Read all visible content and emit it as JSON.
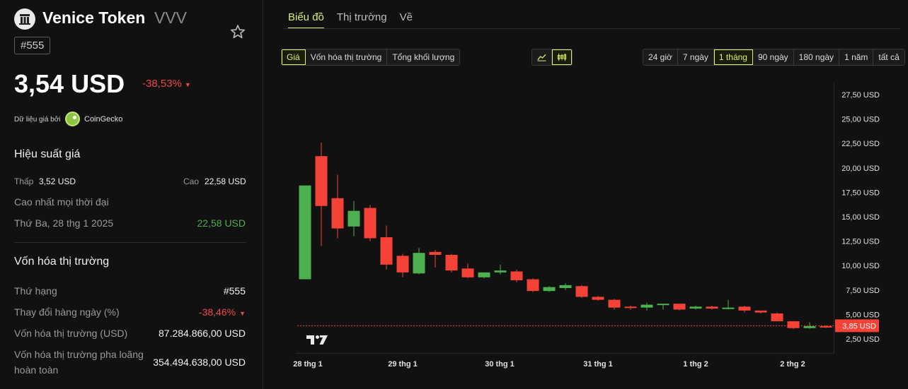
{
  "coin": {
    "name": "Venice Token",
    "symbol": "VVV",
    "rank_badge": "#555",
    "price": "3,54 USD",
    "price_change": "-38,53%",
    "price_change_arrow": "▼",
    "source_label": "Dữ liệu giá bởi",
    "source_name": "CoinGecko"
  },
  "performance": {
    "title": "Hiệu suất giá",
    "low_label": "Thấp",
    "low_value": "3,52 USD",
    "high_label": "Cao",
    "high_value": "22,58 USD",
    "ath_label": "Cao nhất mọi thời đại",
    "ath_date": "Thứ Ba, 28 thg 1 2025",
    "ath_value": "22,58 USD"
  },
  "market_cap": {
    "title": "Vốn hóa thị trường",
    "rank_label": "Thứ hạng",
    "rank_value": "#555",
    "daily_change_label": "Thay đổi hàng ngày (%)",
    "daily_change_value": "-38,46%",
    "daily_change_arrow": "▼",
    "mcap_label": "Vốn hóa thị trường (USD)",
    "mcap_value": "87.284.866,00 USD",
    "fdv_label_1": "Vốn hóa thị trường pha loãng",
    "fdv_label_2": "hoàn toàn",
    "fdv_value": "354.494.638,00 USD"
  },
  "tabs": [
    "Biểu đồ",
    "Thị trường",
    "Về"
  ],
  "metric_buttons": [
    "Giá",
    "Vốn hóa thị trường",
    "Tổng khối lượng"
  ],
  "chart_type_icons": [
    "line-chart-icon",
    "candlestick-chart-icon"
  ],
  "range_buttons": [
    "24 giờ",
    "7 ngày",
    "1 tháng",
    "90 ngày",
    "180 ngày",
    "1 năm",
    "tất cả"
  ],
  "colors": {
    "accent": "#d9f06a",
    "up": "#4caf50",
    "down": "#f44336",
    "background": "#111111"
  },
  "chart_data": {
    "type": "candlestick",
    "y_ticks": [
      "27,50 USD",
      "25,00 USD",
      "22,50 USD",
      "20,00 USD",
      "17,50 USD",
      "15,00 USD",
      "12,50 USD",
      "10,00 USD",
      "7,50 USD",
      "5,00 USD",
      "2,50 USD"
    ],
    "y_tick_values": [
      27.5,
      25,
      22.5,
      20,
      17.5,
      15,
      12.5,
      10,
      7.5,
      5,
      2.5
    ],
    "x_ticks": [
      "28 thg 1",
      "29 thg 1",
      "30 thg 1",
      "31 thg 1",
      "1 thg 2",
      "2 thg 2"
    ],
    "current_price_label": "3,85 USD",
    "current_price": 3.85,
    "candles": [
      {
        "o": 8.6,
        "h": 18.2,
        "l": 8.6,
        "c": 18.2
      },
      {
        "o": 21.2,
        "h": 22.6,
        "l": 12.0,
        "c": 16.1
      },
      {
        "o": 16.9,
        "h": 19.3,
        "l": 12.8,
        "c": 13.8
      },
      {
        "o": 14.0,
        "h": 16.6,
        "l": 13.0,
        "c": 15.6
      },
      {
        "o": 15.9,
        "h": 16.2,
        "l": 12.5,
        "c": 12.8
      },
      {
        "o": 12.9,
        "h": 14.1,
        "l": 9.6,
        "c": 10.1
      },
      {
        "o": 11.0,
        "h": 11.2,
        "l": 8.8,
        "c": 9.3
      },
      {
        "o": 9.2,
        "h": 11.8,
        "l": 9.1,
        "c": 11.3
      },
      {
        "o": 11.4,
        "h": 11.6,
        "l": 9.8,
        "c": 11.1
      },
      {
        "o": 11.1,
        "h": 11.2,
        "l": 9.3,
        "c": 9.5
      },
      {
        "o": 9.7,
        "h": 10.2,
        "l": 8.7,
        "c": 8.8
      },
      {
        "o": 8.8,
        "h": 9.3,
        "l": 8.7,
        "c": 9.3
      },
      {
        "o": 9.3,
        "h": 10.1,
        "l": 9.1,
        "c": 9.5
      },
      {
        "o": 9.4,
        "h": 9.6,
        "l": 8.3,
        "c": 8.5
      },
      {
        "o": 8.6,
        "h": 8.7,
        "l": 7.3,
        "c": 7.4
      },
      {
        "o": 7.4,
        "h": 7.9,
        "l": 7.3,
        "c": 7.8
      },
      {
        "o": 7.7,
        "h": 8.2,
        "l": 7.5,
        "c": 8.0
      },
      {
        "o": 7.9,
        "h": 8.0,
        "l": 6.7,
        "c": 6.8
      },
      {
        "o": 6.8,
        "h": 6.9,
        "l": 6.4,
        "c": 6.5
      },
      {
        "o": 6.5,
        "h": 6.6,
        "l": 5.5,
        "c": 5.7
      },
      {
        "o": 5.8,
        "h": 5.9,
        "l": 5.5,
        "c": 5.7
      },
      {
        "o": 5.7,
        "h": 6.2,
        "l": 5.4,
        "c": 6.0
      },
      {
        "o": 6.0,
        "h": 6.1,
        "l": 5.5,
        "c": 6.1
      },
      {
        "o": 6.1,
        "h": 6.1,
        "l": 5.4,
        "c": 5.5
      },
      {
        "o": 5.6,
        "h": 5.9,
        "l": 5.5,
        "c": 5.8
      },
      {
        "o": 5.8,
        "h": 5.9,
        "l": 5.5,
        "c": 5.6
      },
      {
        "o": 5.6,
        "h": 6.5,
        "l": 5.5,
        "c": 5.7
      },
      {
        "o": 5.8,
        "h": 5.9,
        "l": 5.2,
        "c": 5.4
      },
      {
        "o": 5.4,
        "h": 5.4,
        "l": 5.1,
        "c": 5.2
      },
      {
        "o": 5.1,
        "h": 5.2,
        "l": 4.3,
        "c": 4.3
      },
      {
        "o": 4.3,
        "h": 4.3,
        "l": 3.5,
        "c": 3.6
      },
      {
        "o": 3.6,
        "h": 4.2,
        "l": 3.5,
        "c": 3.8
      },
      {
        "o": 3.8,
        "h": 3.9,
        "l": 3.6,
        "c": 3.7
      }
    ]
  }
}
